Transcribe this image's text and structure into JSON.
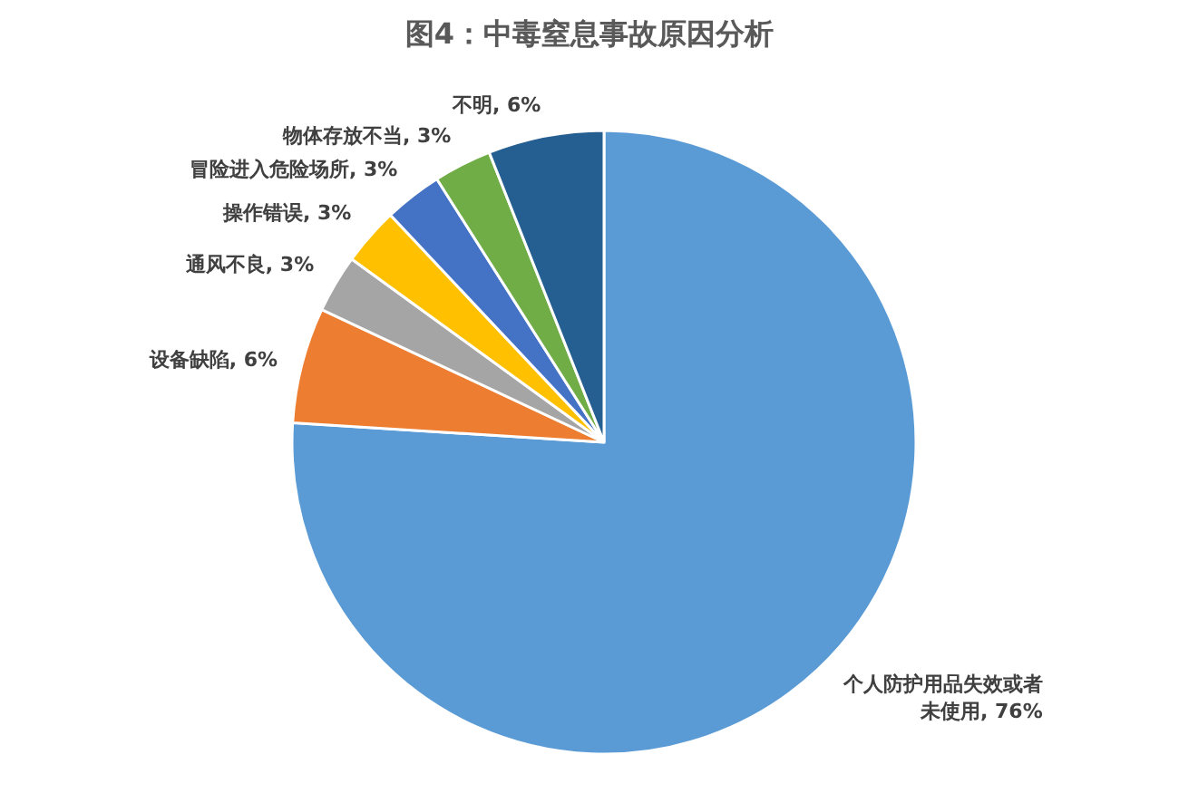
{
  "chart_data": {
    "type": "pie",
    "title": "图4：中毒窒息事故原因分析",
    "categories": [
      "个人防护用品失效或者未使用",
      "设备缺陷",
      "通风不良",
      "操作错误",
      "冒险进入危险场所",
      "物体存放不当",
      "不明"
    ],
    "values": [
      76,
      6,
      3,
      3,
      3,
      3,
      6
    ],
    "value_labels": [
      "76%",
      "6%",
      "3%",
      "3%",
      "3%",
      "3%",
      "6%"
    ],
    "colors": [
      "#5b9bd5",
      "#ed7d31",
      "#a5a5a5",
      "#ffc000",
      "#4472c4",
      "#70ad47",
      "#255e91"
    ]
  }
}
